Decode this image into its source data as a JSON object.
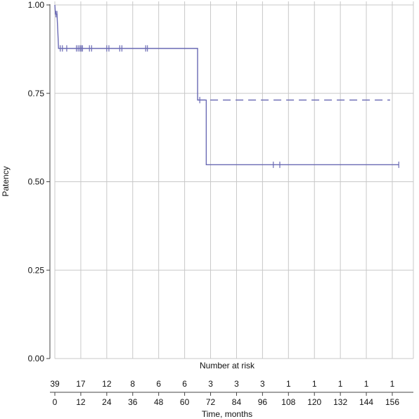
{
  "chart_data": {
    "type": "line",
    "title": "",
    "xlabel": "Time, months",
    "ylabel": "Patency",
    "xlim": [
      0,
      160
    ],
    "ylim": [
      0,
      1
    ],
    "x_ticks": [
      0,
      12,
      24,
      36,
      48,
      60,
      72,
      84,
      96,
      108,
      120,
      132,
      144,
      156
    ],
    "y_ticks": [
      0,
      0.25,
      0.5,
      0.75,
      1.0
    ],
    "y_tick_labels": [
      "0.00",
      "0.25",
      "0.50",
      "0.75",
      "1.00"
    ],
    "grid": true,
    "risk_table": {
      "title": "Number at risk",
      "times": [
        0,
        12,
        24,
        36,
        48,
        60,
        72,
        84,
        96,
        108,
        120,
        132,
        144,
        156
      ],
      "counts": [
        39,
        17,
        12,
        8,
        6,
        6,
        3,
        3,
        3,
        1,
        1,
        1,
        1,
        1
      ]
    },
    "series": [
      {
        "style": "solid",
        "color": "#6a6ab4",
        "steps": [
          {
            "x": 0,
            "y": 1.0
          },
          {
            "x": 0.3,
            "y": 0.974
          },
          {
            "x": 1.0,
            "y": 0.974
          },
          {
            "x": 1.5,
            "y": 0.908
          },
          {
            "x": 1.7,
            "y": 0.877
          },
          {
            "x": 66,
            "y": 0.877
          },
          {
            "x": 66,
            "y": 0.731
          },
          {
            "x": 70,
            "y": 0.731
          },
          {
            "x": 70,
            "y": 0.548
          },
          {
            "x": 159,
            "y": 0.548
          }
        ],
        "censor": [
          {
            "x": 0.5,
            "y": 0.974
          },
          {
            "x": 1.0,
            "y": 0.974
          },
          {
            "x": 2.5,
            "y": 0.877
          },
          {
            "x": 3.5,
            "y": 0.877
          },
          {
            "x": 5.5,
            "y": 0.877
          },
          {
            "x": 10,
            "y": 0.877
          },
          {
            "x": 10.8,
            "y": 0.877
          },
          {
            "x": 11.6,
            "y": 0.877
          },
          {
            "x": 12.2,
            "y": 0.877
          },
          {
            "x": 12.8,
            "y": 0.877
          },
          {
            "x": 16,
            "y": 0.877
          },
          {
            "x": 17,
            "y": 0.877
          },
          {
            "x": 24,
            "y": 0.877
          },
          {
            "x": 25,
            "y": 0.877
          },
          {
            "x": 30,
            "y": 0.877
          },
          {
            "x": 31,
            "y": 0.877
          },
          {
            "x": 42,
            "y": 0.877
          },
          {
            "x": 42.8,
            "y": 0.877
          },
          {
            "x": 67,
            "y": 0.731
          },
          {
            "x": 101,
            "y": 0.548
          },
          {
            "x": 104,
            "y": 0.548
          },
          {
            "x": 159,
            "y": 0.548
          }
        ]
      },
      {
        "style": "dashed",
        "color": "#6a6ab4",
        "steps": [
          {
            "x": 66,
            "y": 0.731
          },
          {
            "x": 155,
            "y": 0.731
          }
        ],
        "censor": []
      }
    ]
  }
}
